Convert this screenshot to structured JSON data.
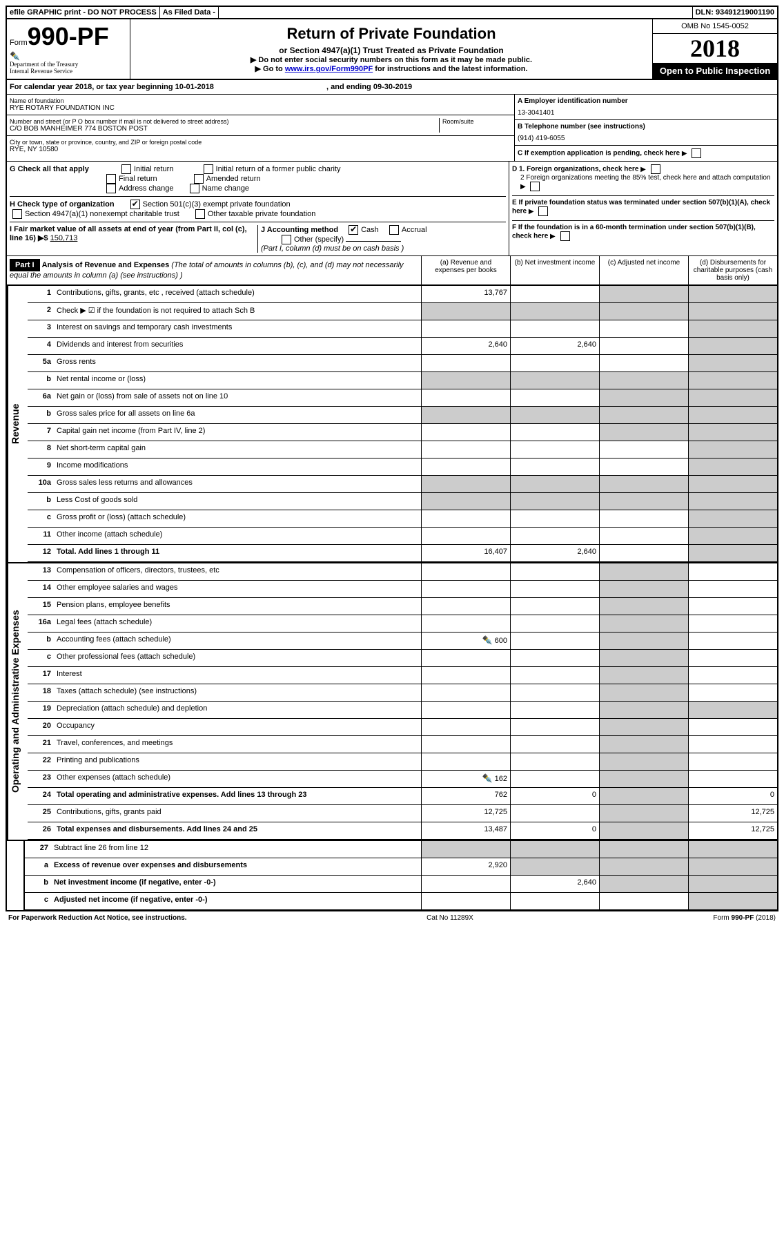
{
  "topbar": {
    "efile": "efile GRAPHIC print - DO NOT PROCESS",
    "asfiled": "As Filed Data -",
    "dln_label": "DLN:",
    "dln": "93491219001190"
  },
  "header": {
    "form_prefix": "Form",
    "form_code": "990-PF",
    "dept1": "Department of the Treasury",
    "dept2": "Internal Revenue Service",
    "title": "Return of Private Foundation",
    "sub": "or Section 4947(a)(1) Trust Treated as Private Foundation",
    "instr1": "▶ Do not enter social security numbers on this form as it may be made public.",
    "instr2_prefix": "▶ Go to ",
    "instr2_link": "www.irs.gov/Form990PF",
    "instr2_suffix": " for instructions and the latest information.",
    "omb": "OMB No 1545-0052",
    "year": "2018",
    "open": "Open to Public Inspection"
  },
  "calendar": {
    "text1": "For calendar year 2018, or tax year beginning ",
    "begin": "10-01-2018",
    "text2": ", and ending ",
    "end": "09-30-2019"
  },
  "name": {
    "name_label": "Name of foundation",
    "name": "RYE ROTARY FOUNDATION INC",
    "addr_label": "Number and street (or P O  box number if mail is not delivered to street address)",
    "addr": "C/O BOB MANHEIMER 774 BOSTON POST",
    "room_label": "Room/suite",
    "city_label": "City or town, state or province, country, and ZIP or foreign postal code",
    "city": "RYE, NY  10580",
    "ein_label": "A Employer identification number",
    "ein": "13-3041401",
    "tel_label": "B Telephone number (see instructions)",
    "tel": "(914) 419-6055",
    "c_label": "C If exemption application is pending, check here"
  },
  "checks": {
    "g_label": "G Check all that apply",
    "g1": "Initial return",
    "g2": "Initial return of a former public charity",
    "g3": "Final return",
    "g4": "Amended return",
    "g5": "Address change",
    "g6": "Name change",
    "h_label": "H Check type of organization",
    "h1": "Section 501(c)(3) exempt private foundation",
    "h2": "Section 4947(a)(1) nonexempt charitable trust",
    "h3": "Other taxable private foundation",
    "i_label": "I Fair market value of all assets at end of year (from Part II, col (c), line 16) ▶$",
    "i_val": "150,713",
    "j_label": "J Accounting method",
    "j1": "Cash",
    "j2": "Accrual",
    "j3": "Other (specify)",
    "j_note": "(Part I, column (d) must be on cash basis )",
    "d1": "D 1. Foreign organizations, check here",
    "d2": "2 Foreign organizations meeting the 85% test, check here and attach computation",
    "e": "E  If private foundation status was terminated under section 507(b)(1)(A), check here",
    "f": "F  If the foundation is in a 60-month termination under section 507(b)(1)(B), check here"
  },
  "part1": {
    "label": "Part I",
    "desc_title": "Analysis of Revenue and Expenses",
    "desc": " (The total of amounts in columns (b), (c), and (d) may not necessarily equal the amounts in column (a) (see instructions) )",
    "col_a": "(a)   Revenue and expenses per books",
    "col_b": "(b)   Net investment income",
    "col_c": "(c)   Adjusted net income",
    "col_d": "(d)   Disbursements for charitable purposes (cash basis only)"
  },
  "revenue_label": "Revenue",
  "expenses_label": "Operating and Administrative Expenses",
  "lines": {
    "l1": {
      "n": "1",
      "d": "Contributions, gifts, grants, etc , received (attach schedule)",
      "a": "13,767"
    },
    "l2": {
      "n": "2",
      "d": "Check ▶ ☑ if the foundation is not required to attach Sch B"
    },
    "l3": {
      "n": "3",
      "d": "Interest on savings and temporary cash investments"
    },
    "l4": {
      "n": "4",
      "d": "Dividends and interest from securities",
      "a": "2,640",
      "b": "2,640"
    },
    "l5a": {
      "n": "5a",
      "d": "Gross rents"
    },
    "l5b": {
      "n": "b",
      "d": "Net rental income or (loss)"
    },
    "l6a": {
      "n": "6a",
      "d": "Net gain or (loss) from sale of assets not on line 10"
    },
    "l6b": {
      "n": "b",
      "d": "Gross sales price for all assets on line 6a"
    },
    "l7": {
      "n": "7",
      "d": "Capital gain net income (from Part IV, line 2)"
    },
    "l8": {
      "n": "8",
      "d": "Net short-term capital gain"
    },
    "l9": {
      "n": "9",
      "d": "Income modifications"
    },
    "l10a": {
      "n": "10a",
      "d": "Gross sales less returns and allowances"
    },
    "l10b": {
      "n": "b",
      "d": "Less  Cost of goods sold"
    },
    "l10c": {
      "n": "c",
      "d": "Gross profit or (loss) (attach schedule)"
    },
    "l11": {
      "n": "11",
      "d": "Other income (attach schedule)"
    },
    "l12": {
      "n": "12",
      "d": "Total. Add lines 1 through 11",
      "a": "16,407",
      "b": "2,640"
    },
    "l13": {
      "n": "13",
      "d": "Compensation of officers, directors, trustees, etc"
    },
    "l14": {
      "n": "14",
      "d": "Other employee salaries and wages"
    },
    "l15": {
      "n": "15",
      "d": "Pension plans, employee benefits"
    },
    "l16a": {
      "n": "16a",
      "d": "Legal fees (attach schedule)"
    },
    "l16b": {
      "n": "b",
      "d": "Accounting fees (attach schedule)",
      "a": "600",
      "icon": true
    },
    "l16c": {
      "n": "c",
      "d": "Other professional fees (attach schedule)"
    },
    "l17": {
      "n": "17",
      "d": "Interest"
    },
    "l18": {
      "n": "18",
      "d": "Taxes (attach schedule) (see instructions)"
    },
    "l19": {
      "n": "19",
      "d": "Depreciation (attach schedule) and depletion"
    },
    "l20": {
      "n": "20",
      "d": "Occupancy"
    },
    "l21": {
      "n": "21",
      "d": "Travel, conferences, and meetings"
    },
    "l22": {
      "n": "22",
      "d": "Printing and publications"
    },
    "l23": {
      "n": "23",
      "d": "Other expenses (attach schedule)",
      "a": "162",
      "icon": true
    },
    "l24": {
      "n": "24",
      "d": "Total operating and administrative expenses. Add lines 13 through 23",
      "a": "762",
      "b": "0",
      "dd": "0"
    },
    "l25": {
      "n": "25",
      "d": "Contributions, gifts, grants paid",
      "a": "12,725",
      "dd": "12,725"
    },
    "l26": {
      "n": "26",
      "d": "Total expenses and disbursements. Add lines 24 and 25",
      "a": "13,487",
      "b": "0",
      "dd": "12,725"
    },
    "l27": {
      "n": "27",
      "d": "Subtract line 26 from line 12"
    },
    "l27a": {
      "n": "a",
      "d": "Excess of revenue over expenses and disbursements",
      "a": "2,920"
    },
    "l27b": {
      "n": "b",
      "d": "Net investment income (if negative, enter -0-)",
      "b": "2,640"
    },
    "l27c": {
      "n": "c",
      "d": "Adjusted net income (if negative, enter -0-)"
    }
  },
  "footer": {
    "left": "For Paperwork Reduction Act Notice, see instructions.",
    "mid": "Cat No  11289X",
    "right": "Form 990-PF (2018)"
  }
}
